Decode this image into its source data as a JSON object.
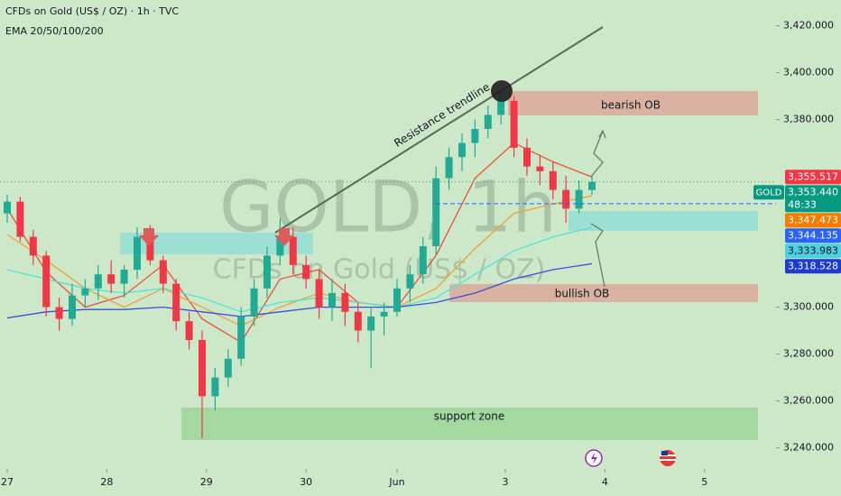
{
  "chart_data": {
    "type": "candlestick",
    "title": "CFDs on Gold (US$ / OZ) · 1h · TVC",
    "subtitle": "EMA 20/50/100/200",
    "watermark": "GOLD, 1h",
    "watermark_subtitle": "CFDs on Gold (US$ / OZ)",
    "up_color": "#22ab94",
    "down_color": "#f23645",
    "x": [
      0,
      3,
      6,
      9,
      12,
      15,
      18,
      21,
      24,
      27,
      30,
      33,
      36,
      39,
      42,
      45,
      48,
      51,
      54,
      57,
      60,
      63,
      66,
      69,
      72,
      75,
      78,
      81,
      84,
      87,
      90,
      93,
      96,
      99,
      102,
      105,
      108,
      111,
      114,
      117,
      120,
      123,
      126,
      129,
      132,
      135
    ],
    "open": [
      3340,
      3345,
      3330,
      3322,
      3300,
      3295,
      3305,
      3308,
      3314,
      3310,
      3316,
      3330,
      3320,
      3310,
      3294,
      3286,
      3262,
      3270,
      3278,
      3296,
      3308,
      3322,
      3330,
      3318,
      3312,
      3300,
      3306,
      3298,
      3290,
      3296,
      3298,
      3308,
      3314,
      3326,
      3355,
      3364,
      3370,
      3376,
      3382,
      3388,
      3368,
      3360,
      3358,
      3350,
      3342,
      3350
    ],
    "high": [
      3348,
      3347,
      3333,
      3324,
      3304,
      3310,
      3312,
      3318,
      3320,
      3318,
      3334,
      3335,
      3322,
      3312,
      3298,
      3290,
      3274,
      3282,
      3300,
      3312,
      3326,
      3338,
      3334,
      3322,
      3316,
      3312,
      3310,
      3302,
      3300,
      3302,
      3312,
      3318,
      3330,
      3360,
      3368,
      3374,
      3380,
      3386,
      3392,
      3390,
      3372,
      3365,
      3362,
      3356,
      3354,
      3356
    ],
    "low": [
      3336,
      3328,
      3318,
      3296,
      3290,
      3292,
      3300,
      3303,
      3306,
      3304,
      3312,
      3318,
      3306,
      3290,
      3282,
      3244,
      3256,
      3266,
      3275,
      3292,
      3304,
      3318,
      3314,
      3308,
      3295,
      3294,
      3292,
      3285,
      3274,
      3288,
      3296,
      3302,
      3310,
      3322,
      3350,
      3358,
      3364,
      3372,
      3378,
      3364,
      3356,
      3352,
      3346,
      3336,
      3340,
      3348
    ],
    "close": [
      3345,
      3330,
      3322,
      3300,
      3295,
      3305,
      3308,
      3314,
      3310,
      3316,
      3330,
      3320,
      3310,
      3294,
      3286,
      3262,
      3270,
      3278,
      3296,
      3308,
      3322,
      3330,
      3318,
      3312,
      3300,
      3306,
      3298,
      3290,
      3296,
      3298,
      3308,
      3314,
      3326,
      3355,
      3364,
      3370,
      3376,
      3382,
      3388,
      3368,
      3360,
      3358,
      3350,
      3342,
      3350,
      3353.44
    ],
    "overlay_x": [
      0,
      9,
      18,
      27,
      36,
      45,
      54,
      63,
      72,
      81,
      90,
      99,
      108,
      117,
      126,
      135
    ],
    "overlays": [
      {
        "color": "#e8503a",
        "values": [
          3342,
          3315,
          3300,
          3305,
          3318,
          3295,
          3285,
          3312,
          3316,
          3302,
          3300,
          3322,
          3355,
          3370,
          3362,
          3355.517
        ]
      },
      {
        "color": "#f0a030",
        "values": [
          3331,
          3320,
          3308,
          3300,
          3308,
          3300,
          3292,
          3300,
          3306,
          3302,
          3300,
          3308,
          3325,
          3340,
          3344,
          3347.473
        ]
      },
      {
        "color": "#4fe3d8",
        "values": [
          3316,
          3312,
          3308,
          3306,
          3308,
          3304,
          3298,
          3302,
          3304,
          3302,
          3300,
          3304,
          3314,
          3324,
          3330,
          3333.983
        ]
      },
      {
        "color": "#3a4fd8",
        "values": [
          3295.4,
          3298,
          3299,
          3299,
          3300,
          3298,
          3296,
          3298,
          3300,
          3300,
          3300,
          3302,
          3306,
          3312,
          3316,
          3318.528
        ]
      }
    ],
    "xlim": [
      -1.667,
      177.5
    ],
    "xticks": [
      {
        "value": 0,
        "label": "27"
      },
      {
        "value": 23,
        "label": "28"
      },
      {
        "value": 46,
        "label": "29"
      },
      {
        "value": 69,
        "label": "30"
      },
      {
        "value": 90,
        "label": "Jun"
      },
      {
        "value": 115,
        "label": "3"
      },
      {
        "value": 138,
        "label": "4"
      },
      {
        "value": 161,
        "label": "5"
      }
    ],
    "ylim": [
      3231,
      3431
    ],
    "yticks": [
      {
        "value": 3420,
        "label": "3,420.000"
      },
      {
        "value": 3400,
        "label": "3,400.000"
      },
      {
        "value": 3380,
        "label": "3,380.000"
      },
      {
        "value": 3300,
        "label": "3,300.000"
      },
      {
        "value": 3280,
        "label": "3,280.000"
      },
      {
        "value": 3260,
        "label": "3,260.000"
      },
      {
        "value": 3240,
        "label": "3,240.000"
      }
    ],
    "price_labels": [
      {
        "value": 3355.517,
        "label": "3,355.517",
        "color": "#f23645"
      },
      {
        "value": 3353.44,
        "label": "3,353.440",
        "color": "#089981",
        "tag": "GOLD",
        "countdown": "48:33",
        "line": "dotted"
      },
      {
        "value": 3347.473,
        "label": "3,347.473",
        "color": "#f57c00"
      },
      {
        "value": 3344.135,
        "label": "3,344.135",
        "color": "#2962ff",
        "line": "dashed"
      },
      {
        "value": 3333.983,
        "label": "3,333.983",
        "color": "#4dd0e1"
      },
      {
        "value": 3318.528,
        "label": "3,318.528",
        "color": "#1e3ad0"
      }
    ],
    "annotations": {
      "trendline": "Resistance trendline",
      "bearish": "bearish OB",
      "bullish": "bullish OB",
      "support": "support zone"
    }
  }
}
